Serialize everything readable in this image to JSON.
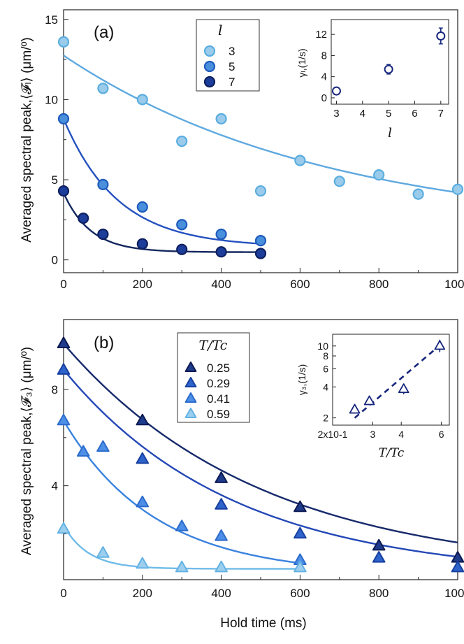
{
  "figure": {
    "xlabel": "Hold time (ms)"
  },
  "chart_data": [
    {
      "id": "a",
      "type": "scatter",
      "panel_label": "(a)",
      "ylabel": "Averaged spectral peak,⟨𝓕ₗ⟩ (μm/º)",
      "xlim": [
        0,
        1000
      ],
      "ylim": [
        -0.8,
        15.6
      ],
      "xticks": [
        0,
        200,
        400,
        600,
        800,
        1000
      ],
      "yticks": [
        0,
        5,
        10,
        15
      ],
      "legend_title": "l",
      "legend_position": "top-center",
      "series": [
        {
          "name": "3",
          "color": "#9bcbeb",
          "edge": "#5aaee0",
          "line_color": "#5ea9e0",
          "x": [
            0,
            100,
            200,
            300,
            400,
            500,
            600,
            700,
            800,
            900,
            1000
          ],
          "y": [
            13.6,
            10.7,
            10.0,
            7.4,
            8.8,
            4.3,
            6.2,
            4.9,
            5.3,
            4.1,
            4.4
          ],
          "fit": {
            "A": 11.0,
            "tau_ms": 666,
            "C": 1.75,
            "x_end": 1000
          }
        },
        {
          "name": "5",
          "color": "#4a8fdc",
          "edge": "#1f5bbd",
          "line_color": "#2552c0",
          "x": [
            0,
            100,
            200,
            300,
            400,
            500
          ],
          "y": [
            8.8,
            4.7,
            3.3,
            2.2,
            1.6,
            1.2
          ],
          "fit": {
            "A": 8.0,
            "tau_ms": 137,
            "C": 0.8,
            "x_end": 500
          }
        },
        {
          "name": "7",
          "color": "#1c3e9a",
          "edge": "#0e1f60",
          "line_color": "#14285f",
          "x": [
            0,
            50,
            100,
            200,
            300,
            400,
            500
          ],
          "y": [
            4.3,
            2.6,
            1.6,
            1.0,
            0.65,
            0.5,
            0.4
          ],
          "fit": {
            "A": 3.7,
            "tau_ms": 68,
            "C": 0.48,
            "x_end": 500
          }
        }
      ],
      "inset": {
        "type": "scatter",
        "ylabel": "γₗ,(1/s)",
        "xlabel": "l",
        "xlim": [
          2.8,
          7.3
        ],
        "ylim": [
          -1.2,
          14.8
        ],
        "xticks": [
          3,
          4,
          5,
          6,
          7
        ],
        "yticks": [
          0,
          4,
          8,
          12
        ],
        "marker_color": "#16267c",
        "x": [
          3,
          5,
          7
        ],
        "y": [
          1.3,
          5.4,
          11.7
        ],
        "yerr": [
          0.5,
          0.9,
          1.5
        ]
      }
    },
    {
      "id": "b",
      "type": "scatter",
      "panel_label": "(b)",
      "ylabel": "Averaged spectral peak,⟨𝓕₃⟩ (μm/º)",
      "xlim": [
        0,
        1000
      ],
      "ylim": [
        0.1,
        10.9
      ],
      "xticks": [
        0,
        200,
        400,
        600,
        800,
        1000
      ],
      "yticks": [
        4,
        8
      ],
      "legend_title": "T/Tc",
      "legend_position": "top-center",
      "series": [
        {
          "name": "0.25",
          "color": "#1e3b8c",
          "edge": "#0d1a52",
          "line_color": "#172a6c",
          "x": [
            0,
            200,
            400,
            600,
            800,
            1000
          ],
          "y": [
            9.9,
            6.7,
            4.3,
            3.1,
            1.5,
            1.0
          ],
          "fit": {
            "A": 9.55,
            "tau_ms": 500,
            "C": 0.35,
            "x_end": 1000
          }
        },
        {
          "name": "0.29",
          "color": "#2f63cc",
          "edge": "#1740a0",
          "line_color": "#2448b6",
          "x": [
            0,
            200,
            400,
            600,
            800,
            1000
          ],
          "y": [
            8.8,
            5.1,
            3.2,
            2.0,
            1.0,
            0.6
          ],
          "fit": {
            "A": 8.62,
            "tau_ms": 432,
            "C": 0.2,
            "x_end": 1000
          }
        },
        {
          "name": "0.41",
          "color": "#4d8fe6",
          "edge": "#2c6ccc",
          "line_color": "#3a82df",
          "x": [
            0,
            50,
            100,
            200,
            300,
            400,
            600
          ],
          "y": [
            6.7,
            5.4,
            5.6,
            3.3,
            2.3,
            1.9,
            0.9
          ],
          "fit": {
            "A": 6.4,
            "tau_ms": 233,
            "C": 0.3,
            "x_end": 600
          }
        },
        {
          "name": "0.59",
          "color": "#9ccfee",
          "edge": "#64b2e3",
          "line_color": "#70bbe8",
          "x": [
            0,
            100,
            200,
            300,
            400,
            600
          ],
          "y": [
            2.2,
            1.2,
            0.75,
            0.6,
            0.6,
            0.6
          ],
          "fit": {
            "A": 1.8,
            "tau_ms": 63,
            "C": 0.55,
            "x_end": 600
          }
        }
      ],
      "inset": {
        "type": "scatter",
        "scale": "log-log",
        "ylabel": "γ₃,(1/s)",
        "xlabel": "T/Tc",
        "xlim": [
          0.2,
          0.65
        ],
        "ylim": [
          1.7,
          13
        ],
        "xtick_labels": [
          "2x10-1",
          "3",
          "4",
          "6"
        ],
        "xtick_values": [
          0.2,
          0.3,
          0.4,
          0.6
        ],
        "ytick_labels": [
          "2",
          "4",
          "6",
          "8",
          "10"
        ],
        "ytick_values": [
          2,
          4,
          6,
          8,
          10
        ],
        "marker_color": "#16267c",
        "x": [
          0.25,
          0.29,
          0.41,
          0.59
        ],
        "y": [
          2.4,
          2.9,
          3.8,
          10.0
        ],
        "yerr_factor": [
          1.05,
          1.05,
          1.12,
          1.15
        ],
        "fit_line": {
          "x0": 0.25,
          "y0": 2.0,
          "x1": 0.61,
          "y1": 10.8
        }
      }
    }
  ]
}
